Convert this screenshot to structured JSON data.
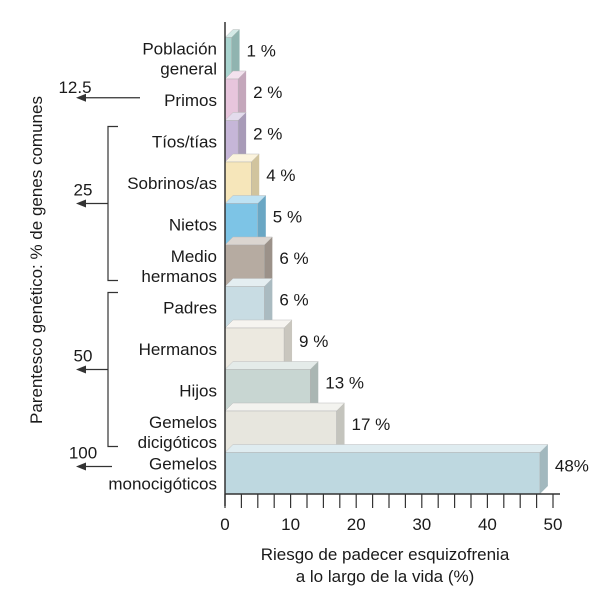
{
  "chart_data": {
    "type": "bar",
    "orientation": "horizontal",
    "style": "3d",
    "categories": [
      [
        "Población",
        "general"
      ],
      [
        "Primos"
      ],
      [
        "Tíos/tías"
      ],
      [
        "Sobrinos/as"
      ],
      [
        "Nietos"
      ],
      [
        "Medio",
        "hermanos"
      ],
      [
        "Padres"
      ],
      [
        "Hermanos"
      ],
      [
        "Hijos"
      ],
      [
        "Gemelos",
        "dicigóticos"
      ],
      [
        "Gemelos",
        "monocigóticos"
      ]
    ],
    "values": [
      1,
      2,
      2,
      4,
      5,
      6,
      6,
      9,
      13,
      17,
      48
    ],
    "data_labels": [
      "1 %",
      "2 %",
      "2 %",
      "4 %",
      "5 %",
      "6 %",
      "6 %",
      "9 %",
      "13 %",
      "17 %",
      "48%"
    ],
    "colors": [
      "#a9d4cf",
      "#e7c5dc",
      "#c6b6d8",
      "#f6e6ba",
      "#7dc4e6",
      "#b6aba1",
      "#c8dce3",
      "#ece9e0",
      "#c8d6d2",
      "#e7e6de",
      "#bed8e0"
    ],
    "xlabel": [
      "Riesgo de padecer esquizofrenia",
      "a lo largo de la vida (%)"
    ],
    "ylabel": "Parentesco genético: % de genes comunes",
    "xlim": [
      0,
      50
    ],
    "xticks": [
      0,
      10,
      20,
      30,
      40,
      50
    ],
    "grid": false,
    "relatedness_groups": [
      {
        "label": "12.5",
        "rows": [
          1,
          1
        ]
      },
      {
        "label": "25",
        "rows": [
          2,
          5
        ]
      },
      {
        "label": "50",
        "rows": [
          6,
          9
        ]
      },
      {
        "label": "100",
        "rows": [
          10,
          10
        ]
      }
    ]
  }
}
